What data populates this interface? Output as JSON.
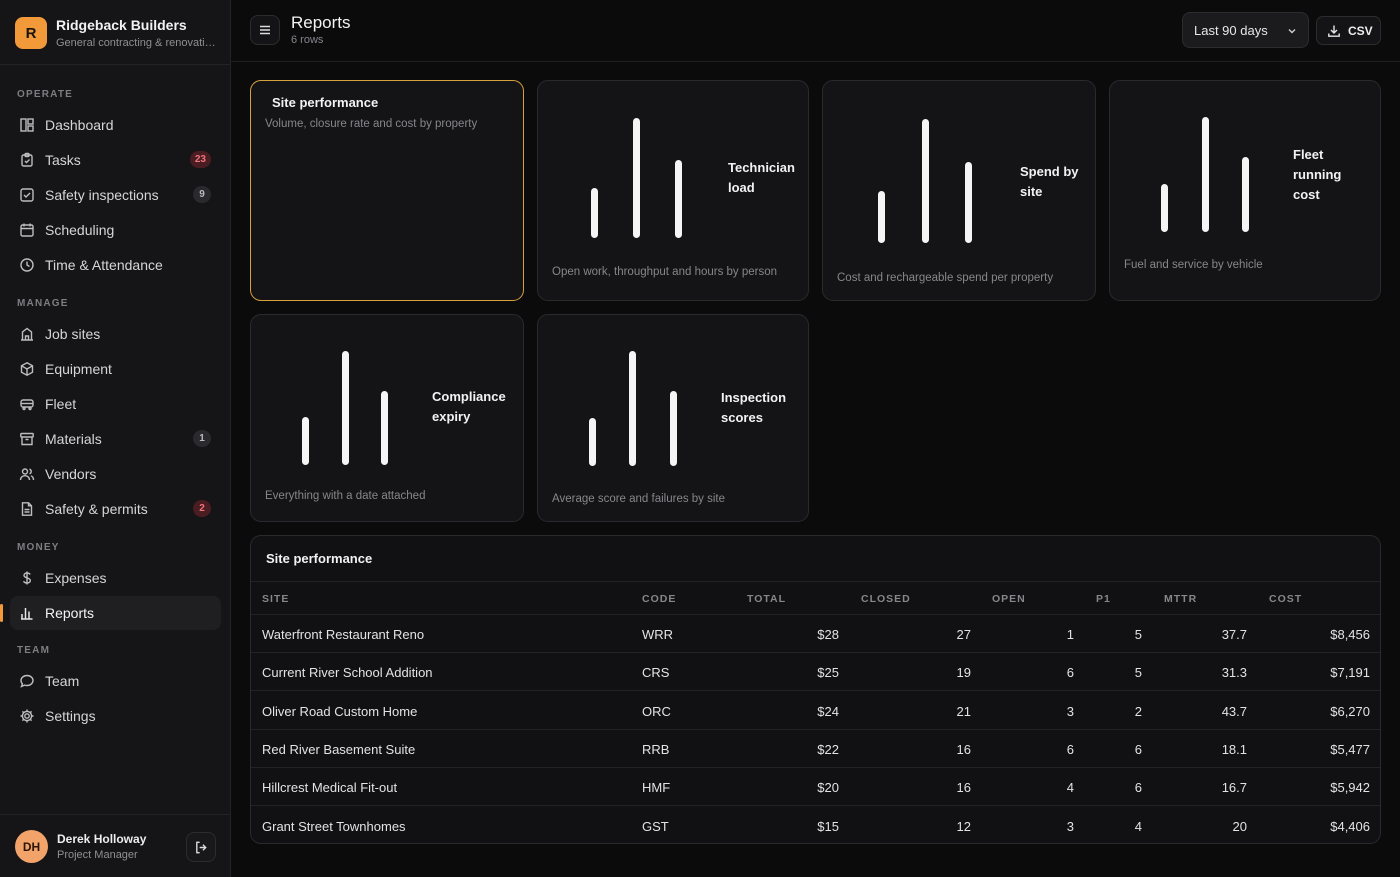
{
  "brand": {
    "logo_letter": "R",
    "name": "Ridgeback Builders",
    "subtitle": "General contracting & renovations"
  },
  "sidebar": {
    "sections": [
      {
        "label": "OPERATE"
      },
      {
        "label": "MANAGE"
      },
      {
        "label": "MONEY"
      },
      {
        "label": "TEAM"
      }
    ],
    "items": [
      {
        "label": "Dashboard",
        "icon": "dashboard-icon"
      },
      {
        "label": "Tasks",
        "icon": "clipboard-icon",
        "badge": "23",
        "badge_color": "#f0737d"
      },
      {
        "label": "Safety inspections",
        "icon": "checkbox-icon",
        "badge": "9"
      },
      {
        "label": "Scheduling",
        "icon": "calendar-icon"
      },
      {
        "label": "Time & Attendance",
        "icon": "clock-icon"
      },
      {
        "label": "Job sites",
        "icon": "building-icon"
      },
      {
        "label": "Equipment",
        "icon": "package-icon"
      },
      {
        "label": "Fleet",
        "icon": "truck-icon"
      },
      {
        "label": "Materials",
        "icon": "archive-icon",
        "badge": "1"
      },
      {
        "label": "Vendors",
        "icon": "users-icon"
      },
      {
        "label": "Safety & permits",
        "icon": "document-icon",
        "badge": "2",
        "badge_color": "#f0737d"
      },
      {
        "label": "Expenses",
        "icon": "dollar-icon"
      },
      {
        "label": "Reports",
        "icon": "bar-chart-icon",
        "active": true
      },
      {
        "label": "Team",
        "icon": "chat-icon"
      },
      {
        "label": "Settings",
        "icon": "gear-icon"
      }
    ]
  },
  "user": {
    "initials": "DH",
    "name": "Derek Holloway",
    "role": "Project Manager"
  },
  "header": {
    "title": "Reports",
    "subtitle": "6 rows",
    "range": "Last 90 days",
    "csv_label": "CSV"
  },
  "accent": "#f29a3a",
  "cards": [
    {
      "title": "Site performance",
      "description": "Volume, closure rate and cost by property",
      "selected": true
    },
    {
      "title": "Technician load",
      "description": "Open work, throughput and hours by person"
    },
    {
      "title": "Spend by site",
      "description": "Cost and rechargeable spend per property"
    },
    {
      "title": "Fleet running cost",
      "description": "Fuel and service by vehicle"
    },
    {
      "title": "Compliance expiry",
      "description": "Everything with a date attached"
    },
    {
      "title": "Inspection scores",
      "description": "Average score and failures by site"
    }
  ],
  "table": {
    "title": "Site performance",
    "columns": [
      "SITE",
      "CODE",
      "TOTAL",
      "CLOSED",
      "OPEN",
      "P1",
      "MTTR",
      "COST"
    ],
    "rows": [
      [
        "Waterfront Restaurant Reno",
        "WRR",
        "$28",
        "27",
        "1",
        "5",
        "37.7",
        "$8,456"
      ],
      [
        "Current River School Addition",
        "CRS",
        "$25",
        "19",
        "6",
        "5",
        "31.3",
        "$7,191"
      ],
      [
        "Oliver Road Custom Home",
        "ORC",
        "$24",
        "21",
        "3",
        "2",
        "43.7",
        "$6,270"
      ],
      [
        "Red River Basement Suite",
        "RRB",
        "$22",
        "16",
        "6",
        "6",
        "18.1",
        "$5,477"
      ],
      [
        "Hillcrest Medical Fit-out",
        "HMF",
        "$20",
        "16",
        "4",
        "6",
        "16.7",
        "$5,942"
      ],
      [
        "Grant Street Townhomes",
        "GST",
        "$15",
        "12",
        "3",
        "4",
        "20",
        "$4,406"
      ]
    ]
  }
}
